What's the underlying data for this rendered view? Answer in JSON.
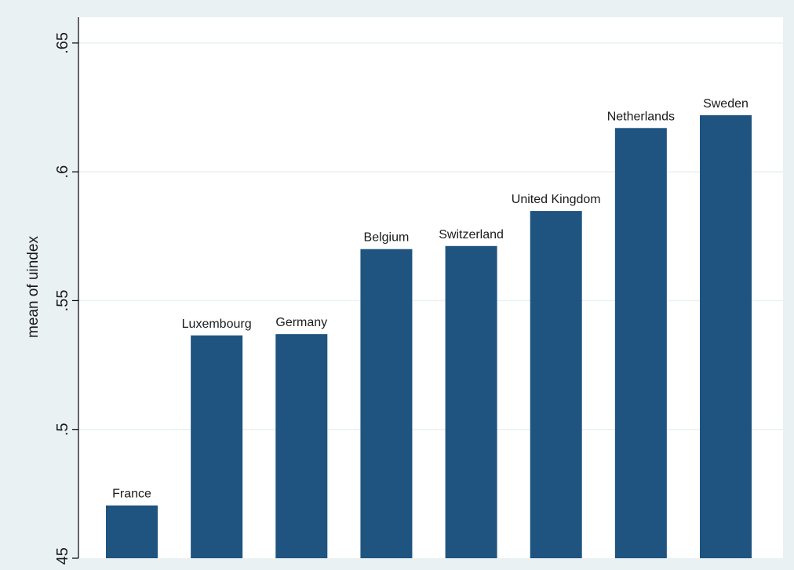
{
  "chart_data": {
    "type": "bar",
    "categories": [
      "France",
      "Luxembourg",
      "Germany",
      "Belgium",
      "Switzerland",
      "United Kingdom",
      "Netherlands",
      "Sweden"
    ],
    "values": [
      0.4705,
      0.5365,
      0.537,
      0.57,
      0.5712,
      0.5848,
      0.617,
      0.622
    ],
    "ylabel": "mean of uindex",
    "ylim": [
      0.45,
      0.66
    ],
    "yticks": [
      ".45",
      ".5",
      ".55",
      ".6",
      ".65"
    ],
    "ytick_values": [
      0.45,
      0.5,
      0.55,
      0.6,
      0.65
    ],
    "grid": true,
    "bar_labels": "above each bar"
  },
  "colors": {
    "background": "#eaf1f3",
    "plot_background": "#ffffff",
    "bar": "#1f5480",
    "grid": "#eaf1f3",
    "axis": "#000000"
  }
}
